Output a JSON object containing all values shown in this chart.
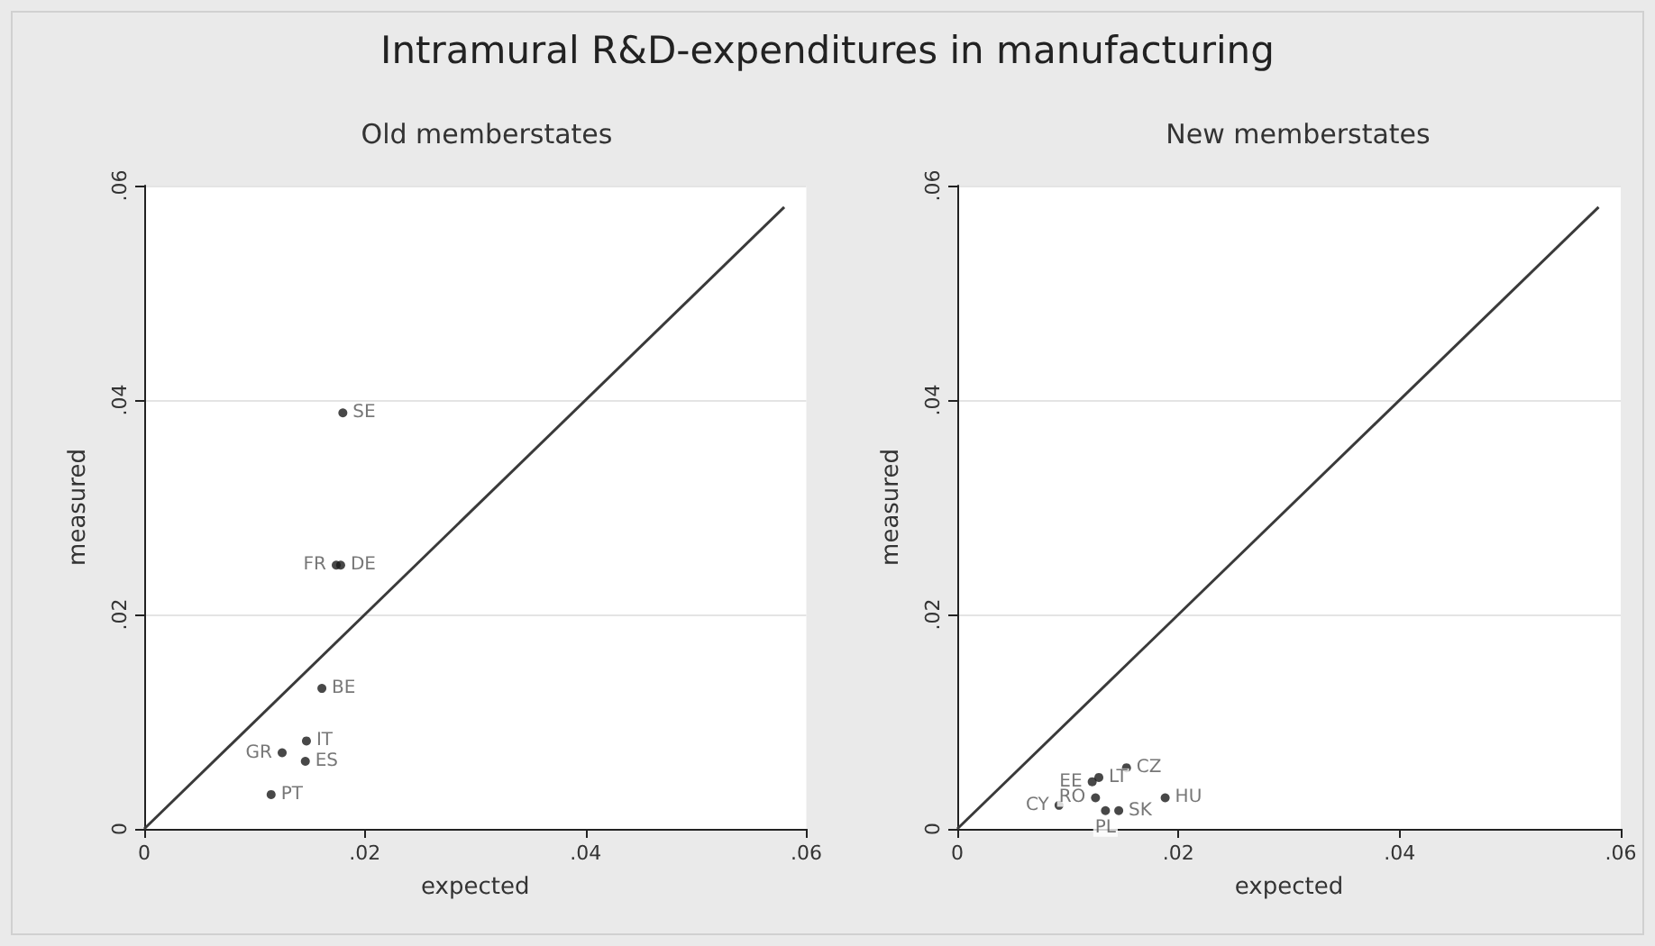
{
  "chart_data": [
    {
      "type": "scatter",
      "title": "Intramural R&D-expenditures in manufacturing",
      "subtitle": "Old memberstates",
      "xlabel": "expected",
      "ylabel": "measured",
      "xlim": [
        0,
        0.06
      ],
      "ylim": [
        0,
        0.06
      ],
      "xticks": [
        0,
        {
          "value": 0.02,
          "label": ".02"
        },
        {
          "value": 0.04,
          "label": ".04"
        },
        {
          "value": 0.06,
          "label": ".06"
        }
      ],
      "yticks": [
        0,
        {
          "value": 0.02,
          "label": ".02"
        },
        {
          "value": 0.04,
          "label": ".04"
        },
        {
          "value": 0.06,
          "label": ".06"
        }
      ],
      "grid": "y",
      "legend": false,
      "marker": "circle",
      "series": [
        {
          "type": "line",
          "color": "#3a3a3a",
          "marker": "none",
          "x": [
            0,
            0.058
          ],
          "values": [
            0,
            0.058
          ]
        },
        {
          "name": "SE",
          "color": "#1a1a1a",
          "x": [
            0.018
          ],
          "values": [
            0.0388
          ]
        },
        {
          "name": "FR",
          "color": "#1a1a1a",
          "x": [
            0.0174
          ],
          "values": [
            0.0246
          ]
        },
        {
          "name": "DE",
          "color": "#1a1a1a",
          "x": [
            0.0178
          ],
          "values": [
            0.0246
          ]
        },
        {
          "name": "BE",
          "color": "#1a1a1a",
          "x": [
            0.0161
          ],
          "values": [
            0.0131
          ]
        },
        {
          "name": "IT",
          "color": "#1a1a1a",
          "x": [
            0.0147
          ],
          "values": [
            0.0082
          ]
        },
        {
          "name": "GR",
          "color": "#1a1a1a",
          "x": [
            0.0125
          ],
          "values": [
            0.0071
          ]
        },
        {
          "name": "ES",
          "color": "#1a1a1a",
          "x": [
            0.0146
          ],
          "values": [
            0.0063
          ]
        },
        {
          "name": "PT",
          "color": "#1a1a1a",
          "x": [
            0.0115
          ],
          "values": [
            0.0032
          ]
        }
      ]
    },
    {
      "type": "scatter",
      "subtitle": "New memberstates",
      "xlabel": "expected",
      "ylabel": "measured",
      "xlim": [
        0,
        0.06
      ],
      "ylim": [
        0,
        0.06
      ],
      "xticks": [
        0,
        {
          "value": 0.02,
          "label": ".02"
        },
        {
          "value": 0.04,
          "label": ".04"
        },
        {
          "value": 0.06,
          "label": ".06"
        }
      ],
      "yticks": [
        0,
        {
          "value": 0.02,
          "label": ".02"
        },
        {
          "value": 0.04,
          "label": ".04"
        },
        {
          "value": 0.06,
          "label": ".06"
        }
      ],
      "grid": "y",
      "legend": false,
      "marker": "circle",
      "series": [
        {
          "type": "line",
          "color": "#3a3a3a",
          "marker": "none",
          "x": [
            0,
            0.058
          ],
          "values": [
            0,
            0.058
          ]
        },
        {
          "name": "CZ",
          "color": "#1a1a1a",
          "x": [
            0.0153
          ],
          "values": [
            0.0057
          ]
        },
        {
          "name": "EE",
          "color": "#1a1a1a",
          "x": [
            0.0122
          ],
          "values": [
            0.0044
          ]
        },
        {
          "name": "LT",
          "color": "#1a1a1a",
          "x": [
            0.0128
          ],
          "values": [
            0.0048
          ]
        },
        {
          "name": "RO",
          "color": "#1a1a1a",
          "x": [
            0.0125
          ],
          "values": [
            0.0029
          ]
        },
        {
          "name": "CY",
          "color": "#1a1a1a",
          "x": [
            0.0092
          ],
          "values": [
            0.0022
          ]
        },
        {
          "name": "HU",
          "color": "#1a1a1a",
          "x": [
            0.0188
          ],
          "values": [
            0.0029
          ]
        },
        {
          "name": "PL",
          "color": "#1a1a1a",
          "x": [
            0.0134
          ],
          "values": [
            0.0017
          ]
        },
        {
          "name": "SK",
          "color": "#1a1a1a",
          "x": [
            0.0146
          ],
          "values": [
            0.0017
          ]
        }
      ]
    }
  ]
}
